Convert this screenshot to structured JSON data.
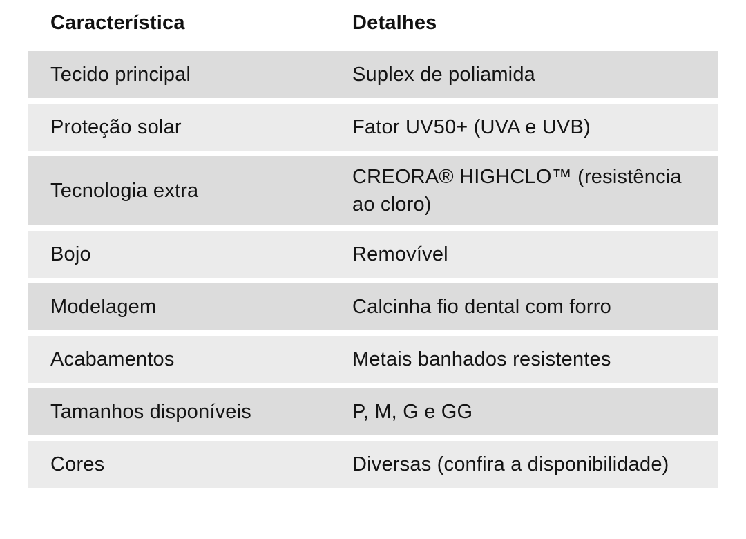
{
  "table": {
    "headers": [
      "Característica",
      "Detalhes"
    ],
    "rows": [
      {
        "feature": "Tecido principal",
        "detail": "Suplex de poliamida"
      },
      {
        "feature": "Proteção solar",
        "detail": "Fator UV50+ (UVA e UVB)"
      },
      {
        "feature": "Tecnologia extra",
        "detail": "CREORA® HIGHCLO™ (resistência ao cloro)"
      },
      {
        "feature": "Bojo",
        "detail": "Removível"
      },
      {
        "feature": "Modelagem",
        "detail": "Calcinha fio dental com forro"
      },
      {
        "feature": "Acabamentos",
        "detail": "Metais banhados resistentes"
      },
      {
        "feature": "Tamanhos disponíveis",
        "detail": "P, M, G e GG"
      },
      {
        "feature": "Cores",
        "detail": "Diversas (confira a disponibilidade)"
      }
    ],
    "colors": {
      "row_dark": "#dcdcdc",
      "row_light": "#ebebeb",
      "text": "#141414",
      "background": "#ffffff"
    }
  }
}
